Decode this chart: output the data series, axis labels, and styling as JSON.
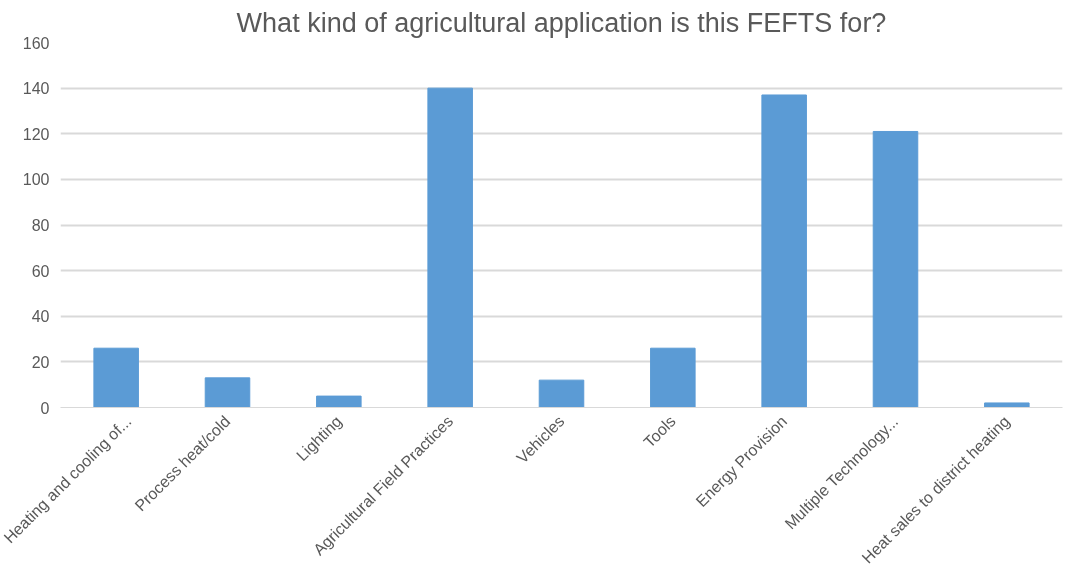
{
  "chart_data": {
    "type": "bar",
    "title": "What kind of agricultural application is this FEFTS for?",
    "categories": [
      "Heating and cooling of...",
      "Process heat/cold",
      "Lighting",
      "Agricultural Field Practices",
      "Vehicles",
      "Tools",
      "Energy Provision",
      "Multiple Technology...",
      "Heat sales to district heating"
    ],
    "values": [
      26,
      13,
      5,
      140,
      12,
      26,
      137,
      121,
      2
    ],
    "color": "#5b9bd5",
    "ylim": [
      0,
      160
    ],
    "yticks": [
      0,
      20,
      40,
      60,
      80,
      100,
      120,
      140,
      160
    ],
    "grid": "y"
  }
}
